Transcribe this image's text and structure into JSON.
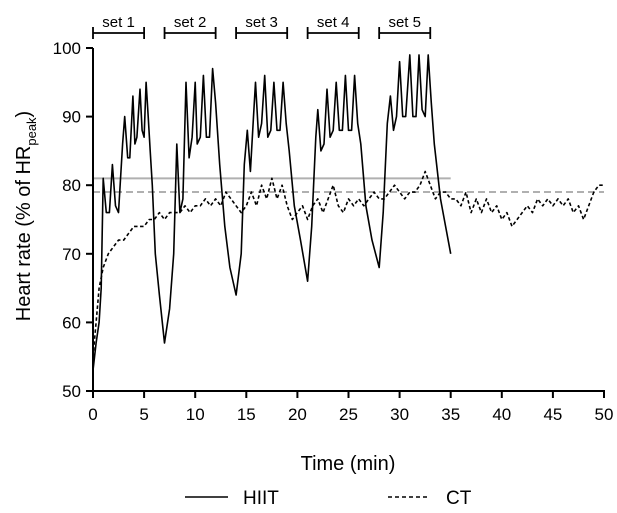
{
  "chart_data": {
    "type": "line",
    "xlabel": "Time (min)",
    "ylabel_parts": [
      "Heart rate (% of HR",
      "peak",
      ")"
    ],
    "xlim": [
      0,
      50
    ],
    "ylim": [
      50,
      100
    ],
    "x_ticks": [
      0,
      5,
      10,
      15,
      20,
      25,
      30,
      35,
      40,
      45,
      50
    ],
    "y_ticks": [
      50,
      60,
      70,
      80,
      90,
      100
    ],
    "sets": [
      {
        "label": "set 1",
        "start": 0,
        "end": 5
      },
      {
        "label": "set 2",
        "start": 7,
        "end": 12
      },
      {
        "label": "set 3",
        "start": 14,
        "end": 19
      },
      {
        "label": "set 4",
        "start": 21,
        "end": 26
      },
      {
        "label": "set 5",
        "start": 28,
        "end": 33
      }
    ],
    "reference_lines": [
      {
        "series": "HIIT",
        "y": 81,
        "x_range": [
          0,
          35
        ],
        "color": "#b0b0b0",
        "style": "solid"
      },
      {
        "series": "CT",
        "y": 79,
        "x_range": [
          0,
          50
        ],
        "color": "#b0b0b0",
        "style": "dashed"
      }
    ],
    "series": [
      {
        "name": "HIIT",
        "style": "solid",
        "color": "#000000",
        "points": [
          [
            0,
            53
          ],
          [
            0.3,
            57
          ],
          [
            0.6,
            60
          ],
          [
            0.8,
            65
          ],
          [
            1.0,
            81
          ],
          [
            1.3,
            76
          ],
          [
            1.6,
            76
          ],
          [
            1.9,
            83
          ],
          [
            2.2,
            77
          ],
          [
            2.5,
            76
          ],
          [
            2.9,
            86
          ],
          [
            3.1,
            90
          ],
          [
            3.4,
            84
          ],
          [
            3.6,
            84
          ],
          [
            3.9,
            93
          ],
          [
            4.1,
            86
          ],
          [
            4.3,
            87
          ],
          [
            4.6,
            94
          ],
          [
            4.8,
            88
          ],
          [
            5.0,
            87
          ],
          [
            5.2,
            95
          ],
          [
            5.4,
            90
          ],
          [
            5.6,
            85
          ],
          [
            5.8,
            80
          ],
          [
            6.1,
            70
          ],
          [
            6.5,
            64
          ],
          [
            7.0,
            57
          ],
          [
            7.5,
            62
          ],
          [
            7.9,
            70
          ],
          [
            8.2,
            86
          ],
          [
            8.5,
            76
          ],
          [
            8.8,
            78
          ],
          [
            9.1,
            95
          ],
          [
            9.4,
            84
          ],
          [
            9.7,
            87
          ],
          [
            10.0,
            95
          ],
          [
            10.2,
            86
          ],
          [
            10.5,
            87
          ],
          [
            10.8,
            96
          ],
          [
            11.1,
            87
          ],
          [
            11.4,
            87
          ],
          [
            11.7,
            97
          ],
          [
            12.0,
            92
          ],
          [
            12.4,
            83
          ],
          [
            12.9,
            74
          ],
          [
            13.4,
            68
          ],
          [
            14.0,
            64
          ],
          [
            14.5,
            70
          ],
          [
            14.8,
            83
          ],
          [
            15.1,
            88
          ],
          [
            15.4,
            82
          ],
          [
            15.7,
            90
          ],
          [
            15.9,
            95
          ],
          [
            16.2,
            87
          ],
          [
            16.5,
            89
          ],
          [
            16.8,
            96
          ],
          [
            17.1,
            87
          ],
          [
            17.4,
            88
          ],
          [
            17.7,
            95
          ],
          [
            18.0,
            88
          ],
          [
            18.3,
            88
          ],
          [
            18.6,
            95
          ],
          [
            18.9,
            89
          ],
          [
            19.2,
            85
          ],
          [
            19.7,
            77
          ],
          [
            20.3,
            72
          ],
          [
            21.0,
            66
          ],
          [
            21.4,
            74
          ],
          [
            21.8,
            87
          ],
          [
            22.0,
            91
          ],
          [
            22.3,
            85
          ],
          [
            22.6,
            86
          ],
          [
            22.9,
            94
          ],
          [
            23.2,
            87
          ],
          [
            23.5,
            88
          ],
          [
            23.8,
            95
          ],
          [
            24.1,
            88
          ],
          [
            24.4,
            88
          ],
          [
            24.7,
            96
          ],
          [
            25.0,
            88
          ],
          [
            25.3,
            88
          ],
          [
            25.6,
            96
          ],
          [
            25.9,
            89
          ],
          [
            26.2,
            86
          ],
          [
            26.7,
            77
          ],
          [
            27.3,
            72
          ],
          [
            28.0,
            68
          ],
          [
            28.4,
            76
          ],
          [
            28.8,
            89
          ],
          [
            29.1,
            93
          ],
          [
            29.4,
            88
          ],
          [
            29.7,
            90
          ],
          [
            30.0,
            98
          ],
          [
            30.3,
            90
          ],
          [
            30.6,
            90
          ],
          [
            31.0,
            99
          ],
          [
            31.3,
            90
          ],
          [
            31.6,
            90
          ],
          [
            31.9,
            99
          ],
          [
            32.2,
            91
          ],
          [
            32.5,
            90
          ],
          [
            32.8,
            99
          ],
          [
            33.1,
            92
          ],
          [
            33.4,
            86
          ],
          [
            34.0,
            78
          ],
          [
            34.5,
            74
          ],
          [
            35.0,
            70
          ]
        ]
      },
      {
        "name": "CT",
        "style": "dashed",
        "color": "#000000",
        "points": [
          [
            0,
            55
          ],
          [
            0.3,
            60
          ],
          [
            0.6,
            65
          ],
          [
            1.0,
            68
          ],
          [
            1.5,
            70
          ],
          [
            2.0,
            71
          ],
          [
            2.5,
            72
          ],
          [
            3.0,
            72
          ],
          [
            3.5,
            73
          ],
          [
            4.0,
            74
          ],
          [
            4.5,
            74
          ],
          [
            5.0,
            74
          ],
          [
            5.5,
            75
          ],
          [
            6.0,
            75
          ],
          [
            6.5,
            76
          ],
          [
            7.0,
            75
          ],
          [
            7.5,
            76
          ],
          [
            8.0,
            76
          ],
          [
            8.5,
            76
          ],
          [
            9.0,
            77
          ],
          [
            9.5,
            76
          ],
          [
            10.0,
            77
          ],
          [
            10.5,
            77
          ],
          [
            11.0,
            78
          ],
          [
            11.5,
            77
          ],
          [
            12.0,
            78
          ],
          [
            12.5,
            77
          ],
          [
            13.0,
            79
          ],
          [
            13.5,
            78
          ],
          [
            14.0,
            77
          ],
          [
            14.5,
            76
          ],
          [
            15.0,
            77
          ],
          [
            15.5,
            79
          ],
          [
            16.0,
            77
          ],
          [
            16.5,
            80
          ],
          [
            17.0,
            78
          ],
          [
            17.5,
            81
          ],
          [
            18.0,
            78
          ],
          [
            18.5,
            80
          ],
          [
            19.0,
            77
          ],
          [
            19.5,
            75
          ],
          [
            20.0,
            76
          ],
          [
            20.5,
            77
          ],
          [
            21.0,
            75
          ],
          [
            21.5,
            77
          ],
          [
            22.0,
            78
          ],
          [
            22.5,
            76
          ],
          [
            23.0,
            78
          ],
          [
            23.5,
            80
          ],
          [
            24.0,
            77
          ],
          [
            24.5,
            76
          ],
          [
            25.0,
            78
          ],
          [
            25.5,
            77
          ],
          [
            26.0,
            78
          ],
          [
            26.5,
            77
          ],
          [
            27.0,
            78
          ],
          [
            27.5,
            79
          ],
          [
            28.0,
            78
          ],
          [
            28.5,
            78
          ],
          [
            29.0,
            79
          ],
          [
            29.5,
            80
          ],
          [
            30.0,
            79
          ],
          [
            30.5,
            78
          ],
          [
            31.0,
            79
          ],
          [
            31.5,
            79
          ],
          [
            32.0,
            80
          ],
          [
            32.5,
            82
          ],
          [
            33.0,
            80
          ],
          [
            33.5,
            78
          ],
          [
            34.0,
            79
          ],
          [
            34.5,
            79
          ],
          [
            35.0,
            78
          ],
          [
            35.5,
            78
          ],
          [
            36.0,
            77
          ],
          [
            36.5,
            79
          ],
          [
            37.0,
            76
          ],
          [
            37.5,
            78
          ],
          [
            38.0,
            76
          ],
          [
            38.5,
            78
          ],
          [
            39.0,
            76
          ],
          [
            39.5,
            77
          ],
          [
            40.0,
            75
          ],
          [
            40.5,
            76
          ],
          [
            41.0,
            74
          ],
          [
            41.5,
            75
          ],
          [
            42.0,
            76
          ],
          [
            42.5,
            77
          ],
          [
            43.0,
            76
          ],
          [
            43.5,
            78
          ],
          [
            44.0,
            77
          ],
          [
            44.5,
            78
          ],
          [
            45.0,
            77
          ],
          [
            45.5,
            78
          ],
          [
            46.0,
            77
          ],
          [
            46.5,
            78
          ],
          [
            47.0,
            76
          ],
          [
            47.5,
            77
          ],
          [
            48.0,
            75
          ],
          [
            48.5,
            77
          ],
          [
            49.0,
            79
          ],
          [
            49.5,
            80
          ],
          [
            50.0,
            80
          ]
        ]
      }
    ],
    "legend": {
      "placement": "bottom",
      "items": [
        {
          "label": "HIIT",
          "style": "solid"
        },
        {
          "label": "CT",
          "style": "dashed"
        }
      ]
    }
  }
}
